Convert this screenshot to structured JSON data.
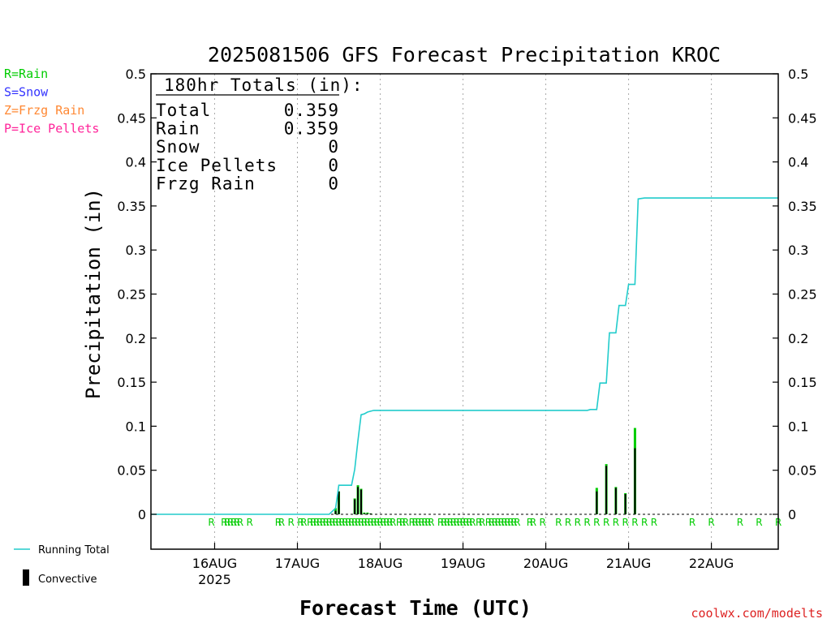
{
  "chart_data": {
    "type": "bar",
    "title": "2025081506 GFS Forecast Precipitation KROC",
    "ylabel": "Precipitation (in)",
    "xlabel": "Forecast Time (UTC)",
    "ylim": [
      0,
      0.5
    ],
    "xlim_hours": [
      -17,
      180
    ],
    "y_ticks": [
      "0",
      "0.05",
      "0.1",
      "0.15",
      "0.2",
      "0.25",
      "0.3",
      "0.35",
      "0.4",
      "0.45",
      "0.5"
    ],
    "x_ticks": [
      {
        "label": "16AUG",
        "sub": "2025",
        "hour": 3
      },
      {
        "label": "17AUG",
        "sub": "",
        "hour": 29
      },
      {
        "label": "18AUG",
        "sub": "",
        "hour": 55
      },
      {
        "label": "19AUG",
        "sub": "",
        "hour": 81
      },
      {
        "label": "20AUG",
        "sub": "",
        "hour": 107
      },
      {
        "label": "21AUG",
        "sub": "",
        "hour": 133
      },
      {
        "label": "22AUG",
        "sub": "",
        "hour": 159
      }
    ],
    "grid": true,
    "legend_types": [
      {
        "label": "R=Rain",
        "color": "#00cc00"
      },
      {
        "label": "S=Snow",
        "color": "#3333ff"
      },
      {
        "label": "Z=Frzg Rain",
        "color": "#ff8833"
      },
      {
        "label": "P=Ice Pellets",
        "color": "#ff2299"
      }
    ],
    "legend_series": [
      {
        "label": "Running Total",
        "color": "#22cccc"
      },
      {
        "label": "Convective",
        "color": "#000000"
      }
    ],
    "totals": {
      "header": "180hr Totals (in):",
      "rows": [
        {
          "label": "Total",
          "value": "0.359"
        },
        {
          "label": "Rain",
          "value": "0.359"
        },
        {
          "label": "Snow",
          "value": "0"
        },
        {
          "label": "Ice Pellets",
          "value": "0"
        },
        {
          "label": "Frzg Rain",
          "value": "0"
        }
      ]
    },
    "bars": [
      {
        "hour": 41,
        "total": 0.007,
        "convective": 0.004
      },
      {
        "hour": 42,
        "total": 0.026,
        "convective": 0.026
      },
      {
        "hour": 47,
        "total": 0.018,
        "convective": 0.017
      },
      {
        "hour": 48,
        "total": 0.033,
        "convective": 0.031
      },
      {
        "hour": 49,
        "total": 0.029,
        "convective": 0.028
      },
      {
        "hour": 50,
        "total": 0.002,
        "convective": 0.001
      },
      {
        "hour": 51,
        "total": 0.002,
        "convective": 0.001
      },
      {
        "hour": 52,
        "total": 0.001,
        "convective": 0.001
      },
      {
        "hour": 123,
        "total": 0.03,
        "convective": 0.026
      },
      {
        "hour": 126,
        "total": 0.057,
        "convective": 0.055
      },
      {
        "hour": 129,
        "total": 0.031,
        "convective": 0.03
      },
      {
        "hour": 132,
        "total": 0.024,
        "convective": 0.023
      },
      {
        "hour": 135,
        "total": 0.098,
        "convective": 0.075
      }
    ],
    "running_total": [
      [
        -17,
        0
      ],
      [
        39,
        0
      ],
      [
        41,
        0.007
      ],
      [
        42,
        0.033
      ],
      [
        46,
        0.033
      ],
      [
        47,
        0.051
      ],
      [
        48,
        0.084
      ],
      [
        49,
        0.113
      ],
      [
        50,
        0.114
      ],
      [
        51,
        0.116
      ],
      [
        52,
        0.117
      ],
      [
        53,
        0.118
      ],
      [
        120,
        0.118
      ],
      [
        121,
        0.119
      ],
      [
        123,
        0.119
      ],
      [
        124,
        0.149
      ],
      [
        126,
        0.149
      ],
      [
        127,
        0.206
      ],
      [
        129,
        0.206
      ],
      [
        130,
        0.237
      ],
      [
        132,
        0.237
      ],
      [
        133,
        0.261
      ],
      [
        135,
        0.261
      ],
      [
        136,
        0.358
      ],
      [
        138,
        0.359
      ],
      [
        180,
        0.359
      ]
    ],
    "precip_type_marks": [
      {
        "hour": 2,
        "type": "R"
      },
      {
        "hour": 6,
        "type": "R"
      },
      {
        "hour": 7,
        "type": "R"
      },
      {
        "hour": 8,
        "type": "R"
      },
      {
        "hour": 9,
        "type": "R"
      },
      {
        "hour": 10,
        "type": "R"
      },
      {
        "hour": 11,
        "type": "R"
      },
      {
        "hour": 14,
        "type": "R"
      },
      {
        "hour": 23,
        "type": "R"
      },
      {
        "hour": 24,
        "type": "R"
      },
      {
        "hour": 27,
        "type": "R"
      },
      {
        "hour": 30,
        "type": "R"
      },
      {
        "hour": 31,
        "type": "R"
      },
      {
        "hour": 33,
        "type": "R"
      },
      {
        "hour": 34,
        "type": "R"
      },
      {
        "hour": 35,
        "type": "R"
      },
      {
        "hour": 36,
        "type": "R"
      },
      {
        "hour": 37,
        "type": "R"
      },
      {
        "hour": 38,
        "type": "R"
      },
      {
        "hour": 39,
        "type": "R"
      },
      {
        "hour": 40,
        "type": "R"
      },
      {
        "hour": 41,
        "type": "R"
      },
      {
        "hour": 42,
        "type": "R"
      },
      {
        "hour": 43,
        "type": "R"
      },
      {
        "hour": 44,
        "type": "R"
      },
      {
        "hour": 45,
        "type": "R"
      },
      {
        "hour": 46,
        "type": "R"
      },
      {
        "hour": 47,
        "type": "R"
      },
      {
        "hour": 48,
        "type": "R"
      },
      {
        "hour": 49,
        "type": "R"
      },
      {
        "hour": 50,
        "type": "R"
      },
      {
        "hour": 51,
        "type": "R"
      },
      {
        "hour": 52,
        "type": "R"
      },
      {
        "hour": 53,
        "type": "R"
      },
      {
        "hour": 54,
        "type": "R"
      },
      {
        "hour": 55,
        "type": "R"
      },
      {
        "hour": 56,
        "type": "R"
      },
      {
        "hour": 57,
        "type": "R"
      },
      {
        "hour": 58,
        "type": "R"
      },
      {
        "hour": 59,
        "type": "R"
      },
      {
        "hour": 61,
        "type": "R"
      },
      {
        "hour": 62,
        "type": "R"
      },
      {
        "hour": 63,
        "type": "R"
      },
      {
        "hour": 65,
        "type": "R"
      },
      {
        "hour": 66,
        "type": "R"
      },
      {
        "hour": 67,
        "type": "R"
      },
      {
        "hour": 68,
        "type": "R"
      },
      {
        "hour": 69,
        "type": "R"
      },
      {
        "hour": 70,
        "type": "R"
      },
      {
        "hour": 71,
        "type": "R"
      },
      {
        "hour": 74,
        "type": "R"
      },
      {
        "hour": 75,
        "type": "R"
      },
      {
        "hour": 76,
        "type": "R"
      },
      {
        "hour": 77,
        "type": "R"
      },
      {
        "hour": 78,
        "type": "R"
      },
      {
        "hour": 79,
        "type": "R"
      },
      {
        "hour": 80,
        "type": "R"
      },
      {
        "hour": 81,
        "type": "R"
      },
      {
        "hour": 82,
        "type": "R"
      },
      {
        "hour": 83,
        "type": "R"
      },
      {
        "hour": 84,
        "type": "R"
      },
      {
        "hour": 86,
        "type": "R"
      },
      {
        "hour": 87,
        "type": "R"
      },
      {
        "hour": 89,
        "type": "R"
      },
      {
        "hour": 90,
        "type": "R"
      },
      {
        "hour": 91,
        "type": "R"
      },
      {
        "hour": 92,
        "type": "R"
      },
      {
        "hour": 93,
        "type": "R"
      },
      {
        "hour": 94,
        "type": "R"
      },
      {
        "hour": 95,
        "type": "R"
      },
      {
        "hour": 96,
        "type": "R"
      },
      {
        "hour": 97,
        "type": "R"
      },
      {
        "hour": 98,
        "type": "R"
      },
      {
        "hour": 102,
        "type": "R"
      },
      {
        "hour": 103,
        "type": "R"
      },
      {
        "hour": 106,
        "type": "R"
      },
      {
        "hour": 111,
        "type": "R"
      },
      {
        "hour": 114,
        "type": "R"
      },
      {
        "hour": 117,
        "type": "R"
      },
      {
        "hour": 120,
        "type": "R"
      },
      {
        "hour": 123,
        "type": "R"
      },
      {
        "hour": 126,
        "type": "R"
      },
      {
        "hour": 129,
        "type": "R"
      },
      {
        "hour": 132,
        "type": "R"
      },
      {
        "hour": 135,
        "type": "R"
      },
      {
        "hour": 138,
        "type": "R"
      },
      {
        "hour": 141,
        "type": "R"
      },
      {
        "hour": 153,
        "type": "R"
      },
      {
        "hour": 159,
        "type": "R"
      },
      {
        "hour": 168,
        "type": "R"
      },
      {
        "hour": 174,
        "type": "R"
      },
      {
        "hour": 180,
        "type": "R"
      }
    ]
  },
  "colors": {
    "running_total": "#22cccc",
    "rain": "#00cc00",
    "convective": "#000000",
    "credit": "#dd2222"
  },
  "credit": "coolwx.com/modelts"
}
